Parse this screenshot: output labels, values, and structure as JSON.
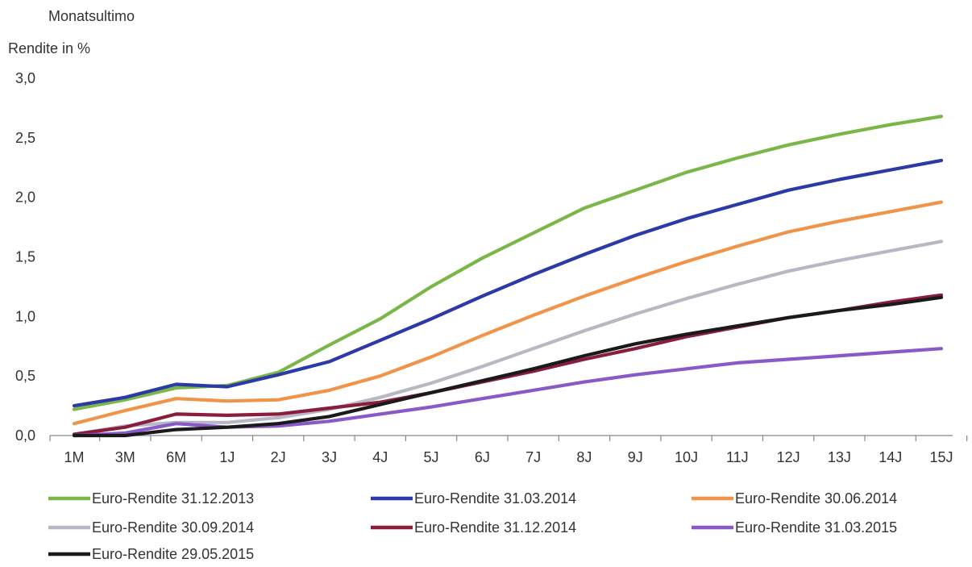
{
  "header": "Monatsultimo",
  "chart_data": {
    "type": "line",
    "ylabel": "Rendite in %",
    "xlabel": "",
    "ylim": [
      0,
      3
    ],
    "yticks": [
      "0,0",
      "0,5",
      "1,0",
      "1,5",
      "2,0",
      "2,5",
      "3,0"
    ],
    "ytick_values": [
      0,
      0.5,
      1.0,
      1.5,
      2.0,
      2.5,
      3.0
    ],
    "categories": [
      "1M",
      "3M",
      "6M",
      "1J",
      "2J",
      "3J",
      "4J",
      "5J",
      "6J",
      "7J",
      "8J",
      "9J",
      "10J",
      "11J",
      "12J",
      "13J",
      "14J",
      "15J"
    ],
    "grid": false,
    "legend_position": "bottom",
    "series": [
      {
        "name": "Euro-Rendite 31.12.2013",
        "color": "#7ab648",
        "values": [
          0.22,
          0.3,
          0.4,
          0.42,
          0.53,
          0.76,
          0.98,
          1.25,
          1.49,
          1.7,
          1.91,
          2.06,
          2.21,
          2.33,
          2.44,
          2.53,
          2.61,
          2.68
        ]
      },
      {
        "name": "Euro-Rendite 31.03.2014",
        "color": "#2b3aa6",
        "values": [
          0.25,
          0.32,
          0.43,
          0.41,
          0.51,
          0.62,
          0.8,
          0.98,
          1.17,
          1.35,
          1.52,
          1.68,
          1.82,
          1.94,
          2.06,
          2.15,
          2.23,
          2.31
        ]
      },
      {
        "name": "Euro-Rendite 30.06.2014",
        "color": "#f0944a",
        "values": [
          0.1,
          0.21,
          0.31,
          0.29,
          0.3,
          0.38,
          0.5,
          0.66,
          0.84,
          1.01,
          1.17,
          1.32,
          1.46,
          1.59,
          1.71,
          1.8,
          1.88,
          1.96
        ]
      },
      {
        "name": "Euro-Rendite 30.09.2014",
        "color": "#b8b8c4",
        "values": [
          0.01,
          0.08,
          0.11,
          0.11,
          0.15,
          0.22,
          0.32,
          0.44,
          0.58,
          0.73,
          0.88,
          1.02,
          1.15,
          1.27,
          1.38,
          1.47,
          1.55,
          1.63
        ]
      },
      {
        "name": "Euro-Rendite 31.12.2014",
        "color": "#8a1c3c",
        "values": [
          0.01,
          0.07,
          0.18,
          0.17,
          0.18,
          0.23,
          0.28,
          0.36,
          0.45,
          0.54,
          0.64,
          0.73,
          0.83,
          0.91,
          0.99,
          1.05,
          1.12,
          1.18
        ]
      },
      {
        "name": "Euro-Rendite 31.03.2015",
        "color": "#8a59c8",
        "values": [
          0.0,
          0.02,
          0.1,
          0.07,
          0.08,
          0.12,
          0.18,
          0.24,
          0.31,
          0.38,
          0.45,
          0.51,
          0.56,
          0.61,
          0.64,
          0.67,
          0.7,
          0.73
        ]
      },
      {
        "name": "Euro-Rendite 29.05.2015",
        "color": "#1a1a1a",
        "values": [
          0.0,
          0.0,
          0.05,
          0.07,
          0.1,
          0.16,
          0.26,
          0.36,
          0.46,
          0.56,
          0.67,
          0.77,
          0.85,
          0.92,
          0.99,
          1.05,
          1.1,
          1.16
        ]
      }
    ]
  }
}
